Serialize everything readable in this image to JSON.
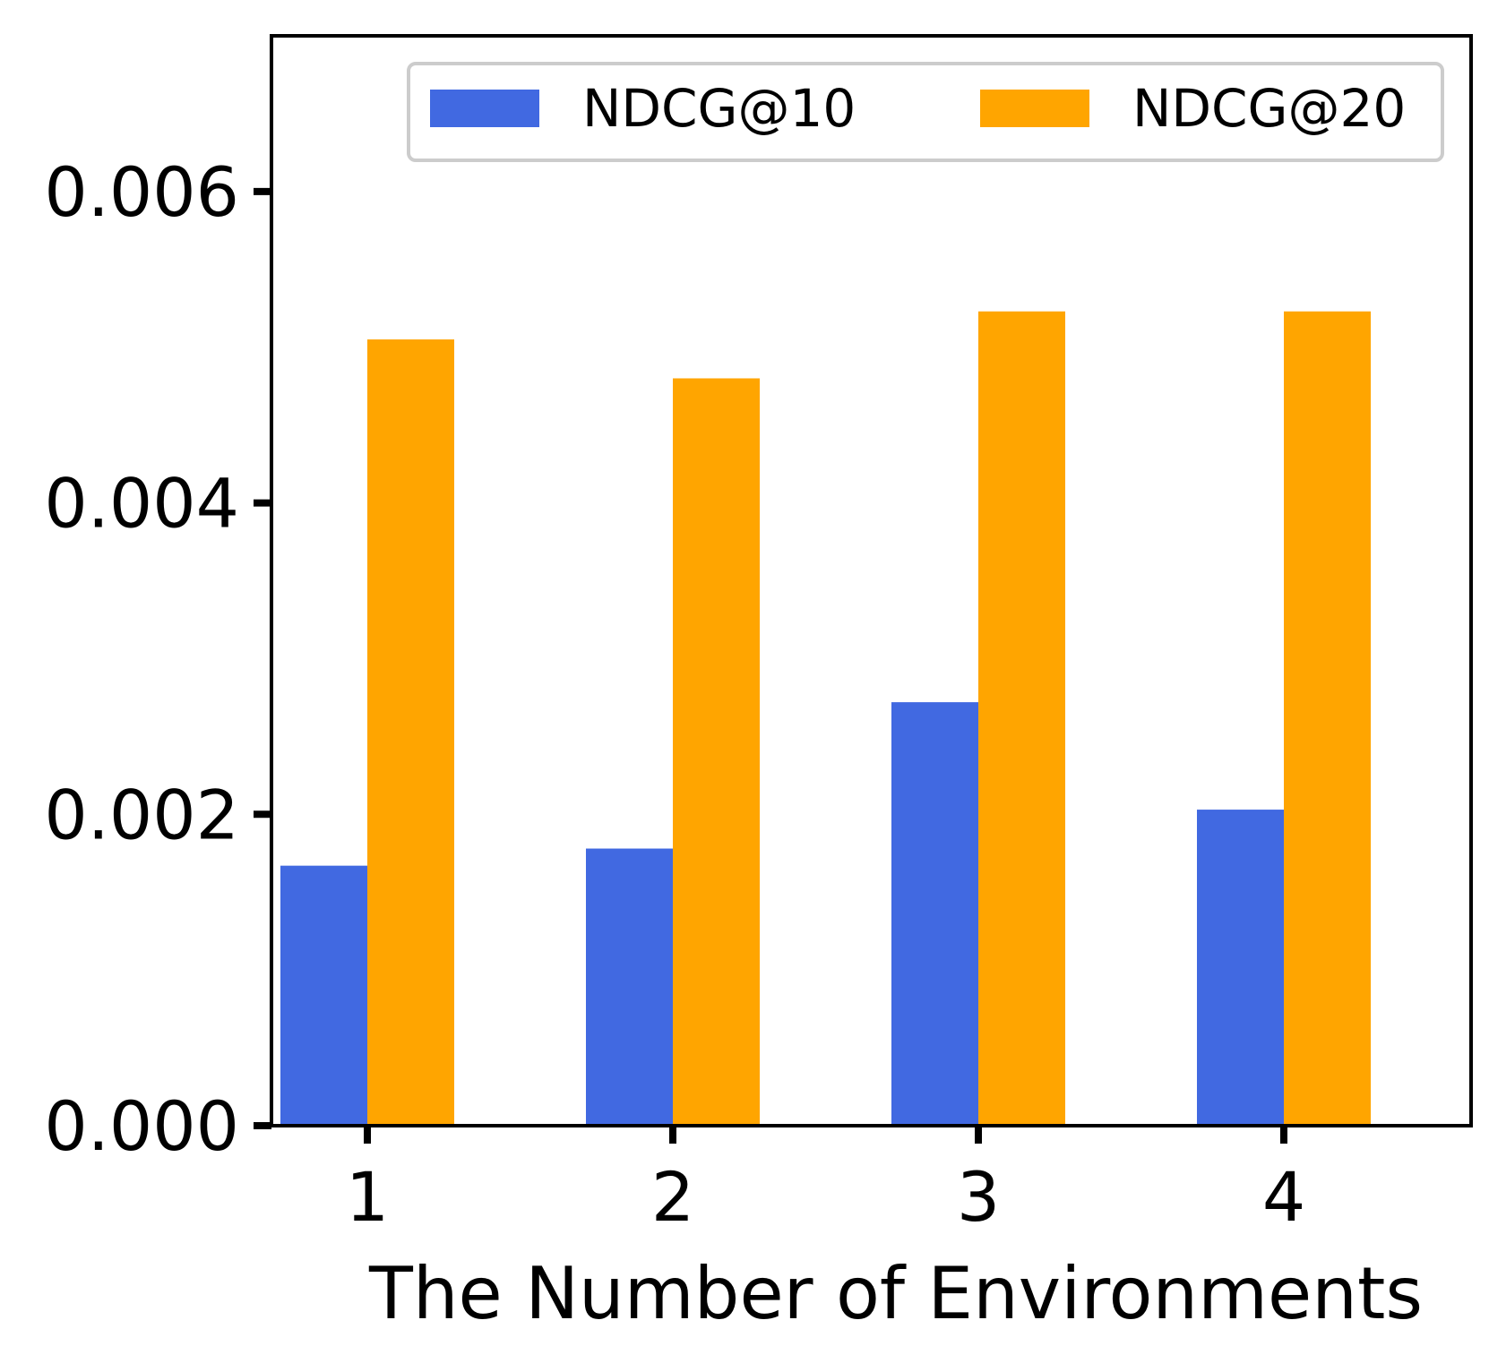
{
  "chart_data": {
    "type": "bar",
    "title": "",
    "xlabel": "The Number of Environments",
    "ylabel": "",
    "categories": [
      "1",
      "2",
      "3",
      "4"
    ],
    "series": [
      {
        "name": "NDCG@10",
        "color": "#4169E1",
        "values": [
          0.00167,
          0.00178,
          0.00272,
          0.00203
        ]
      },
      {
        "name": "NDCG@20",
        "color": "#FFA500",
        "values": [
          0.00505,
          0.0048,
          0.00523,
          0.00523
        ]
      }
    ],
    "ylim": [
      0,
      0.007
    ],
    "yticks": [
      0,
      0.002,
      0.004,
      0.006
    ],
    "ytick_labels": [
      "0.000",
      "0.002",
      "0.004",
      "0.006"
    ],
    "legend_position": "top-right",
    "grid": false
  }
}
